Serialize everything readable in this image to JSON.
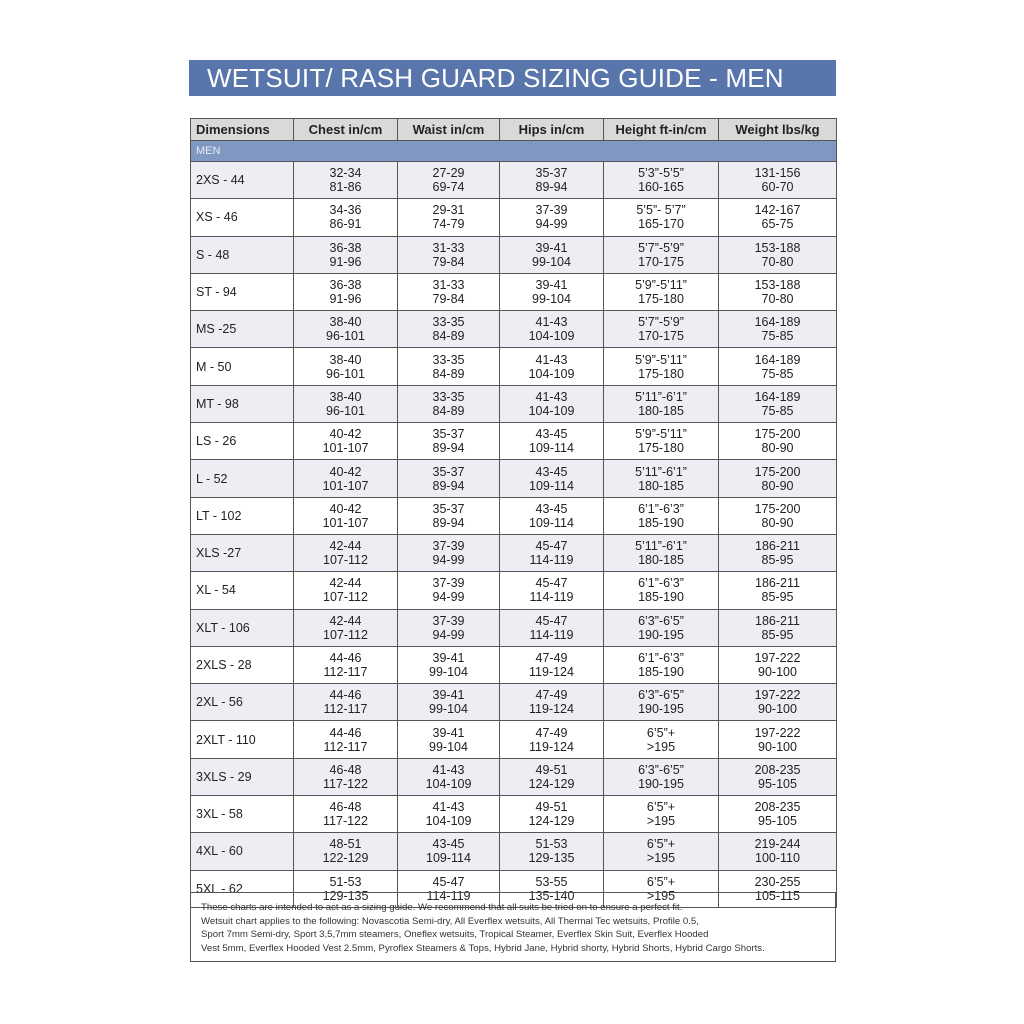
{
  "title": "WETSUIT/ RASH GUARD SIZING GUIDE - MEN",
  "columns": [
    "Dimensions",
    "Chest in/cm",
    "Waist in/cm",
    "Hips in/cm",
    "Height ft-in/cm",
    "Weight lbs/kg"
  ],
  "section": "MEN",
  "rows": [
    [
      "2XS - 44",
      "32-34",
      "81-86",
      "27-29",
      "69-74",
      "35-37",
      "89-94",
      "5’3”-5’5”",
      "160-165",
      "131-156",
      "60-70"
    ],
    [
      "XS - 46",
      "34-36",
      "86-91",
      "29-31",
      "74-79",
      "37-39",
      "94-99",
      "5’5”- 5’7”",
      "165-170",
      "142-167",
      "65-75"
    ],
    [
      "S - 48",
      "36-38",
      "91-96",
      "31-33",
      "79-84",
      "39-41",
      "99-104",
      "5’7”-5’9”",
      "170-175",
      "153-188",
      "70-80"
    ],
    [
      "ST - 94",
      "36-38",
      "91-96",
      "31-33",
      "79-84",
      "39-41",
      "99-104",
      "5’9”-5’11”",
      "175-180",
      "153-188",
      "70-80"
    ],
    [
      "MS -25",
      "38-40",
      "96-101",
      "33-35",
      "84-89",
      "41-43",
      "104-109",
      "5’7”-5’9”",
      "170-175",
      "164-189",
      "75-85"
    ],
    [
      "M - 50",
      "38-40",
      "96-101",
      "33-35",
      "84-89",
      "41-43",
      "104-109",
      "5’9”-5’11”",
      "175-180",
      "164-189",
      "75-85"
    ],
    [
      "MT - 98",
      "38-40",
      "96-101",
      "33-35",
      "84-89",
      "41-43",
      "104-109",
      "5’11”-6’1”",
      "180-185",
      "164-189",
      "75-85"
    ],
    [
      "LS - 26",
      "40-42",
      "101-107",
      "35-37",
      "89-94",
      "43-45",
      "109-114",
      "5’9”-5’11”",
      "175-180",
      "175-200",
      "80-90"
    ],
    [
      "L - 52",
      "40-42",
      "101-107",
      "35-37",
      "89-94",
      "43-45",
      "109-114",
      "5’11”-6’1”",
      "180-185",
      "175-200",
      "80-90"
    ],
    [
      "LT - 102",
      "40-42",
      "101-107",
      "35-37",
      "89-94",
      "43-45",
      "109-114",
      "6’1”-6’3”",
      "185-190",
      "175-200",
      "80-90"
    ],
    [
      "XLS -27",
      "42-44",
      "107-112",
      "37-39",
      "94-99",
      "45-47",
      "114-119",
      "5’11”-6’1”",
      "180-185",
      "186-211",
      "85-95"
    ],
    [
      "XL - 54",
      "42-44",
      "107-112",
      "37-39",
      "94-99",
      "45-47",
      "114-119",
      "6’1”-6’3”",
      "185-190",
      "186-211",
      "85-95"
    ],
    [
      "XLT - 106",
      "42-44",
      "107-112",
      "37-39",
      "94-99",
      "45-47",
      "114-119",
      "6’3”-6’5”",
      "190-195",
      "186-211",
      "85-95"
    ],
    [
      "2XLS - 28",
      "44-46",
      "112-117",
      "39-41",
      "99-104",
      "47-49",
      "119-124",
      "6’1”-6’3”",
      "185-190",
      "197-222",
      "90-100"
    ],
    [
      "2XL - 56",
      "44-46",
      "112-117",
      "39-41",
      "99-104",
      "47-49",
      "119-124",
      "6’3”-6’5”",
      "190-195",
      "197-222",
      "90-100"
    ],
    [
      "2XLT - 110",
      "44-46",
      "112-117",
      "39-41",
      "99-104",
      "47-49",
      "119-124",
      "6’5”+",
      ">195",
      "197-222",
      "90-100"
    ],
    [
      "3XLS - 29",
      "46-48",
      "117-122",
      "41-43",
      "104-109",
      "49-51",
      "124-129",
      "6’3”-6’5”",
      "190-195",
      "208-235",
      "95-105"
    ],
    [
      "3XL - 58",
      "46-48",
      "117-122",
      "41-43",
      "104-109",
      "49-51",
      "124-129",
      "6’5”+",
      ">195",
      "208-235",
      "95-105"
    ],
    [
      "4XL - 60",
      "48-51",
      "122-129",
      "43-45",
      "109-114",
      "51-53",
      "129-135",
      "6’5”+",
      ">195",
      "219-244",
      "100-110"
    ],
    [
      "5XL - 62",
      "51-53",
      "129-135",
      "45-47",
      "114-119",
      "53-55",
      "135-140",
      "6’5”+",
      ">195",
      "230-255",
      "105-115"
    ]
  ],
  "note_lines": [
    "These charts are intended to act as a sizing guide. We recommend that all suits be tried on to ensure a perfect fit.",
    "Wetsuit chart applies to the following: Novascotia Semi-dry, All Everflex wetsuits, All Thermal Tec wetsuits, Profile 0.5,",
    "Sport 7mm Semi-dry, Sport 3,5,7mm steamers, Oneflex wetsuits, Tropical Steamer, Everflex Skin Suit, Everflex Hooded",
    "Vest 5mm, Everflex Hooded Vest  2.5mm, Pyroflex Steamers & Tops, Hybrid Jane, Hybrid shorty, Hybrid Shorts, Hybrid Cargo Shorts."
  ],
  "colors": {
    "title_bg": "#5876ab",
    "section_bg": "#8097c2",
    "header_bg": "#d9d9d9"
  }
}
